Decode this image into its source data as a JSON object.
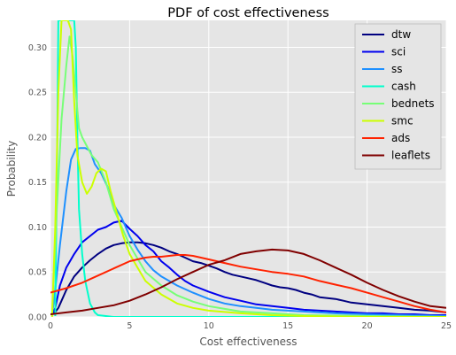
{
  "chart_data": {
    "type": "line",
    "title": "PDF of cost effectiveness",
    "xlabel": "Cost effectiveness",
    "ylabel": "Probability",
    "xlim": [
      0,
      25
    ],
    "ylim": [
      0,
      0.33
    ],
    "xticks": [
      "0",
      "5",
      "10",
      "15",
      "20",
      "25"
    ],
    "yticks": [
      "0.00",
      "0.05",
      "0.10",
      "0.15",
      "0.20",
      "0.25",
      "0.30"
    ],
    "grid": true,
    "legend_position": "top-right",
    "series": [
      {
        "name": "dtw",
        "color": "#000080",
        "x": [
          0.2,
          0.5,
          1,
          1.5,
          2,
          2.5,
          3,
          3.5,
          4,
          4.5,
          5,
          5.5,
          6,
          6.5,
          7,
          7.5,
          8,
          8.5,
          9,
          9.5,
          10,
          10.5,
          11,
          11.5,
          12,
          12.5,
          13,
          13.5,
          14,
          14.5,
          15,
          15.5,
          16,
          16.5,
          17,
          17.5,
          18,
          18.5,
          19,
          19.5,
          20,
          21,
          22,
          23,
          24,
          25
        ],
        "y": [
          0.003,
          0.01,
          0.03,
          0.045,
          0.055,
          0.063,
          0.07,
          0.076,
          0.08,
          0.082,
          0.083,
          0.083,
          0.082,
          0.08,
          0.077,
          0.073,
          0.07,
          0.066,
          0.062,
          0.06,
          0.057,
          0.054,
          0.05,
          0.047,
          0.045,
          0.043,
          0.041,
          0.038,
          0.035,
          0.033,
          0.032,
          0.03,
          0.027,
          0.025,
          0.022,
          0.021,
          0.02,
          0.018,
          0.016,
          0.015,
          0.014,
          0.012,
          0.01,
          0.008,
          0.007,
          0.005
        ]
      },
      {
        "name": "sci",
        "color": "#0000ee",
        "x": [
          0.1,
          0.3,
          0.6,
          1,
          1.5,
          2,
          2.5,
          3,
          3.5,
          4,
          4.5,
          5,
          5.5,
          6,
          6.5,
          7,
          7.5,
          8,
          8.5,
          9,
          10,
          11,
          12,
          13,
          14,
          15,
          16,
          17,
          18,
          19,
          20,
          21,
          22,
          23,
          24,
          25
        ],
        "y": [
          0.002,
          0.01,
          0.035,
          0.055,
          0.07,
          0.083,
          0.09,
          0.097,
          0.1,
          0.105,
          0.107,
          0.098,
          0.09,
          0.08,
          0.073,
          0.062,
          0.055,
          0.047,
          0.04,
          0.035,
          0.028,
          0.022,
          0.018,
          0.014,
          0.012,
          0.01,
          0.008,
          0.007,
          0.006,
          0.005,
          0.004,
          0.004,
          0.003,
          0.003,
          0.002,
          0.002
        ]
      },
      {
        "name": "ss",
        "color": "#1e90ff",
        "x": [
          0.1,
          0.3,
          0.6,
          1,
          1.3,
          1.6,
          1.9,
          2.2,
          2.5,
          2.8,
          3.2,
          3.6,
          4,
          4.5,
          5,
          5.5,
          6,
          6.5,
          7,
          7.5,
          8,
          9,
          10,
          11,
          12,
          13,
          14,
          15,
          16,
          18,
          20,
          22,
          25
        ],
        "y": [
          0.002,
          0.03,
          0.08,
          0.14,
          0.175,
          0.187,
          0.188,
          0.188,
          0.185,
          0.17,
          0.16,
          0.145,
          0.125,
          0.11,
          0.09,
          0.075,
          0.062,
          0.052,
          0.045,
          0.04,
          0.035,
          0.027,
          0.02,
          0.015,
          0.012,
          0.01,
          0.008,
          0.007,
          0.006,
          0.004,
          0.003,
          0.002,
          0.001
        ]
      },
      {
        "name": "cash",
        "color": "#00ffcc",
        "x": [
          0.3,
          0.4,
          0.5,
          0.6,
          0.7,
          1.5,
          1.6,
          1.7,
          1.8,
          2,
          2.2,
          2.5,
          2.8,
          3,
          3.5,
          4,
          25
        ],
        "y": [
          0.001,
          0.15,
          0.33,
          0.33,
          0.33,
          0.33,
          0.3,
          0.2,
          0.12,
          0.07,
          0.04,
          0.015,
          0.005,
          0.002,
          0.001,
          0.0,
          0.0
        ]
      },
      {
        "name": "bednets",
        "color": "#77ff77",
        "x": [
          0.1,
          0.4,
          0.7,
          1,
          1.2,
          1.4,
          1.6,
          1.8,
          2,
          2.3,
          2.6,
          3,
          3.5,
          4,
          4.5,
          5,
          5.5,
          6,
          7,
          8,
          9,
          10,
          11,
          12,
          14,
          16,
          20,
          25
        ],
        "y": [
          0.001,
          0.12,
          0.22,
          0.28,
          0.312,
          0.29,
          0.25,
          0.21,
          0.2,
          0.19,
          0.18,
          0.172,
          0.15,
          0.12,
          0.1,
          0.08,
          0.065,
          0.05,
          0.035,
          0.024,
          0.017,
          0.012,
          0.009,
          0.006,
          0.004,
          0.002,
          0.001,
          0.0
        ]
      },
      {
        "name": "smc",
        "color": "#ccff00",
        "x": [
          0.1,
          0.3,
          0.5,
          0.7,
          0.9,
          1.1,
          1.3,
          1.5,
          1.7,
          2,
          2.3,
          2.6,
          2.9,
          3.2,
          3.5,
          3.8,
          4.2,
          4.6,
          5,
          5.5,
          6,
          7,
          8,
          9,
          10,
          12,
          14,
          16,
          20,
          25
        ],
        "y": [
          0.0,
          0.1,
          0.25,
          0.33,
          0.33,
          0.33,
          0.32,
          0.24,
          0.18,
          0.15,
          0.137,
          0.145,
          0.16,
          0.165,
          0.162,
          0.14,
          0.115,
          0.09,
          0.07,
          0.055,
          0.04,
          0.025,
          0.015,
          0.01,
          0.007,
          0.004,
          0.002,
          0.001,
          0.0,
          0.0
        ]
      },
      {
        "name": "ads",
        "color": "#ff2200",
        "x": [
          0,
          1,
          2,
          3,
          4,
          5,
          5.5,
          6,
          6.5,
          7,
          7.5,
          8,
          8.5,
          9,
          9.5,
          10,
          11,
          12,
          13,
          14,
          15,
          16,
          17,
          18,
          19,
          20,
          21,
          22,
          23,
          24,
          25
        ],
        "y": [
          0.027,
          0.032,
          0.038,
          0.046,
          0.054,
          0.062,
          0.064,
          0.066,
          0.067,
          0.067,
          0.068,
          0.069,
          0.069,
          0.068,
          0.066,
          0.064,
          0.06,
          0.056,
          0.053,
          0.05,
          0.048,
          0.045,
          0.04,
          0.036,
          0.032,
          0.027,
          0.022,
          0.017,
          0.012,
          0.008,
          0.005
        ]
      },
      {
        "name": "leaflets",
        "color": "#800000",
        "x": [
          0,
          1,
          2,
          3,
          4,
          5,
          6,
          7,
          8,
          9,
          10,
          11,
          12,
          13,
          14,
          15,
          16,
          17,
          18,
          19,
          20,
          21,
          22,
          23,
          24,
          25
        ],
        "y": [
          0.003,
          0.005,
          0.007,
          0.01,
          0.013,
          0.018,
          0.025,
          0.033,
          0.042,
          0.05,
          0.058,
          0.063,
          0.07,
          0.073,
          0.075,
          0.074,
          0.07,
          0.063,
          0.055,
          0.047,
          0.038,
          0.03,
          0.023,
          0.017,
          0.012,
          0.01
        ]
      }
    ]
  }
}
